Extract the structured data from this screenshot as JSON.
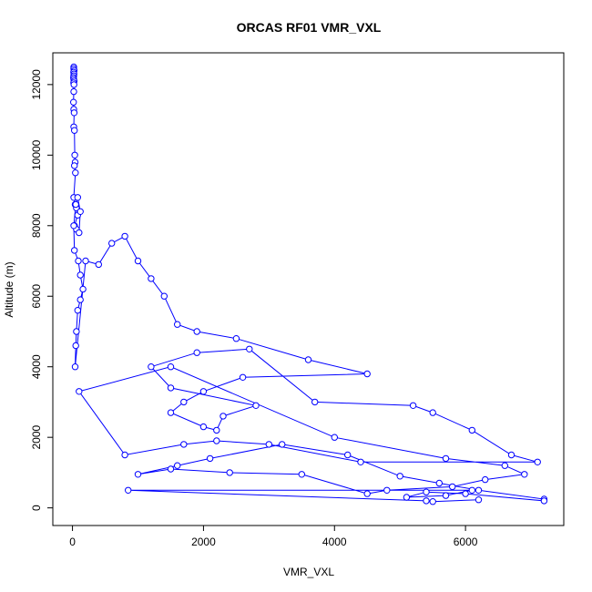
{
  "chart_data": {
    "type": "line",
    "title": "ORCAS RF01 VMR_VXL",
    "xlabel": "VMR_VXL",
    "ylabel": "Altitude (m)",
    "xlim": [
      -300,
      7500
    ],
    "ylim": [
      -500,
      12900
    ],
    "x_ticks": [
      0,
      2000,
      4000,
      6000
    ],
    "y_ticks": [
      0,
      2000,
      4000,
      6000,
      8000,
      10000,
      12000
    ],
    "x_tick_labels": [
      "0",
      "2000",
      "4000",
      "6000"
    ],
    "y_tick_labels": [
      "0",
      "2000",
      "4000",
      "6000",
      "8000",
      "10000",
      "12000"
    ],
    "grid": false,
    "legend": "none",
    "series_color": "#0000ff",
    "series": [
      {
        "x": [
          20,
          20,
          25,
          18,
          22,
          20,
          15,
          20,
          25,
          18,
          22,
          20,
          15,
          20,
          25,
          20,
          30,
          35,
          40,
          30,
          45,
          20,
          40,
          60,
          80,
          30,
          60,
          100,
          120,
          80,
          50,
          20,
          30,
          90,
          120,
          160,
          120,
          80,
          60,
          50,
          40,
          200,
          400,
          600,
          800,
          1000,
          1200,
          1400,
          1600,
          1900,
          2500,
          3600,
          4500,
          2600,
          2000,
          1700,
          1500,
          2000,
          2200,
          2300,
          2800,
          1500,
          1200,
          1900,
          2700,
          3700,
          5200,
          5500,
          6100,
          6700,
          7100,
          4400,
          3000,
          2200,
          1700,
          800,
          100,
          1500,
          4000,
          5700,
          6600,
          6900,
          6300,
          5800,
          4800,
          4500,
          3500,
          2400,
          1500,
          1000,
          1600,
          2100,
          3200,
          4200,
          5000,
          5600,
          6200,
          7200,
          7200,
          6000,
          5400,
          5100,
          5700,
          6100,
          850,
          5400,
          5500,
          6200
        ],
        "y": [
          12500,
          12450,
          12400,
          12350,
          12300,
          12250,
          12200,
          12150,
          12100,
          12050,
          12000,
          11800,
          11500,
          11300,
          11200,
          10800,
          10700,
          10000,
          9800,
          9700,
          9500,
          8800,
          8600,
          8500,
          8300,
          8000,
          7900,
          7800,
          8400,
          8800,
          8600,
          8000,
          7300,
          7000,
          6600,
          6200,
          5900,
          5600,
          5000,
          4600,
          4000,
          7000,
          6900,
          7500,
          7700,
          7000,
          6500,
          6000,
          5200,
          5000,
          4800,
          4200,
          3800,
          3700,
          3300,
          3000,
          2700,
          2300,
          2200,
          2600,
          2900,
          3400,
          4000,
          4400,
          4500,
          3000,
          2900,
          2700,
          2200,
          1500,
          1300,
          1300,
          1800,
          1900,
          1800,
          1500,
          3300,
          4000,
          2000,
          1400,
          1200,
          950,
          800,
          600,
          500,
          400,
          950,
          1000,
          1100,
          950,
          1200,
          1400,
          1800,
          1500,
          900,
          700,
          500,
          250,
          200,
          400,
          450,
          300,
          350,
          500,
          500,
          200,
          180,
          230
        ]
      }
    ]
  }
}
